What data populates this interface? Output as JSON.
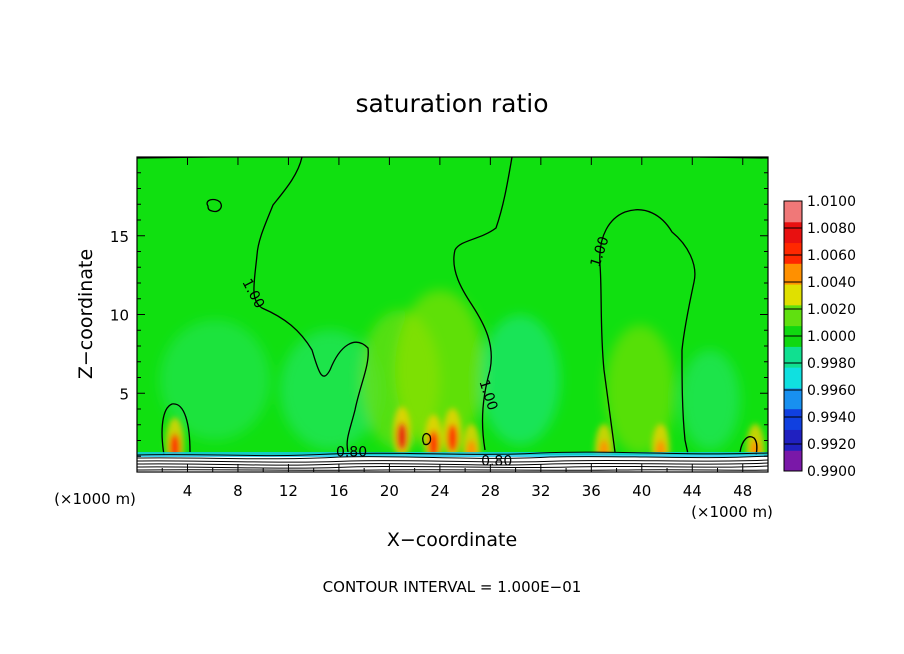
{
  "chart_data": {
    "type": "heatmap",
    "title": "saturation ratio",
    "xlabel": "X−coordinate",
    "ylabel": "Z−coordinate",
    "x_unit_left": "(×1000 m)",
    "x_unit_right": "(×1000 m)",
    "footer": "CONTOUR INTERVAL = 1.000E−01",
    "xlim": [
      0,
      50
    ],
    "ylim": [
      0,
      20
    ],
    "x_ticks": [
      4,
      8,
      12,
      16,
      20,
      24,
      28,
      32,
      36,
      40,
      44,
      48
    ],
    "y_ticks": [
      5,
      10,
      15
    ],
    "colorbar": {
      "min": 0.99,
      "max": 1.01,
      "labels": [
        "1.0100",
        "1.0080",
        "1.0060",
        "1.0040",
        "1.0020",
        "1.0000",
        "0.9980",
        "0.9960",
        "0.9940",
        "0.9920",
        "0.9900"
      ],
      "colors": [
        "#7a18a8",
        "#2020c0",
        "#1040e0",
        "#1890f0",
        "#10e0e0",
        "#10e090",
        "#10d810",
        "#60e010",
        "#e0e000",
        "#ff9000",
        "#ff2800",
        "#e81010",
        "#f07878"
      ]
    },
    "contour_labels": [
      {
        "text": "1.00",
        "x": 8.9,
        "z": 11.2
      },
      {
        "text": "1.00",
        "x": 27.5,
        "z": 4.8
      },
      {
        "text": "1.00",
        "x": 37.0,
        "z": 13.9
      },
      {
        "text": "0.80",
        "x": 17.0,
        "z": 1.0
      },
      {
        "text": "0.80",
        "x": 28.5,
        "z": 0.4
      }
    ],
    "hotspots": [
      {
        "x": 3.0,
        "z": 1.8,
        "value": 1.006
      },
      {
        "x": 21.0,
        "z": 2.5,
        "value": 1.008
      },
      {
        "x": 23.5,
        "z": 2.0,
        "value": 1.006
      },
      {
        "x": 25.0,
        "z": 2.4,
        "value": 1.006
      },
      {
        "x": 26.5,
        "z": 1.4,
        "value": 1.005
      },
      {
        "x": 41.5,
        "z": 1.4,
        "value": 1.005
      },
      {
        "x": 37.0,
        "z": 1.4,
        "value": 1.004
      },
      {
        "x": 49.0,
        "z": 1.4,
        "value": 1.005
      }
    ]
  }
}
